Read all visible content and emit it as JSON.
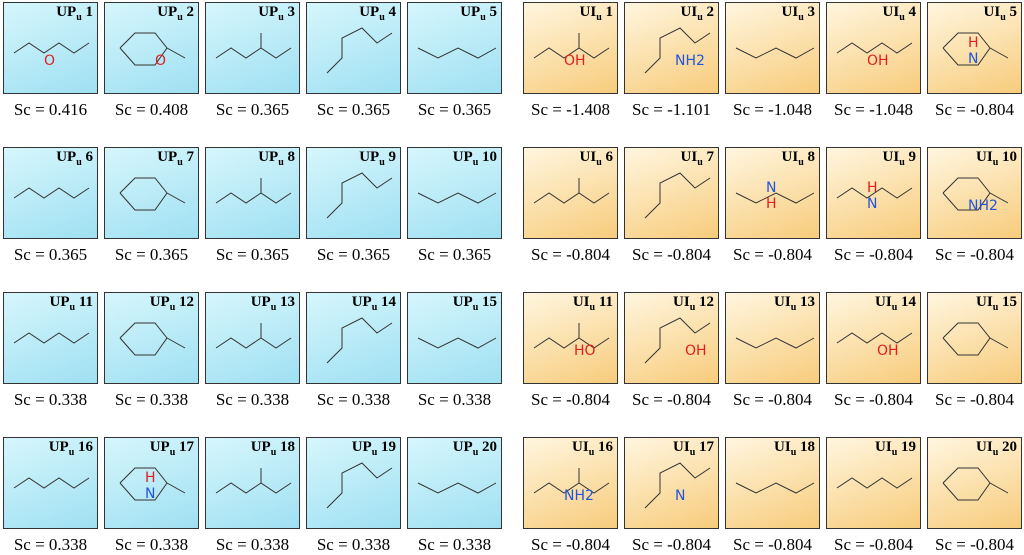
{
  "score_prefix": "Sc = ",
  "left": {
    "prefix": "UP",
    "subscript": "u",
    "items": [
      {
        "n": "1",
        "sc": "0.416",
        "atoms": [
          "O"
        ]
      },
      {
        "n": "2",
        "sc": "0.408",
        "atoms": [
          "O"
        ]
      },
      {
        "n": "3",
        "sc": "0.365"
      },
      {
        "n": "4",
        "sc": "0.365"
      },
      {
        "n": "5",
        "sc": "0.365"
      },
      {
        "n": "6",
        "sc": "0.365"
      },
      {
        "n": "7",
        "sc": "0.365"
      },
      {
        "n": "8",
        "sc": "0.365"
      },
      {
        "n": "9",
        "sc": "0.365"
      },
      {
        "n": "10",
        "sc": "0.365"
      },
      {
        "n": "11",
        "sc": "0.338"
      },
      {
        "n": "12",
        "sc": "0.338"
      },
      {
        "n": "13",
        "sc": "0.338"
      },
      {
        "n": "14",
        "sc": "0.338"
      },
      {
        "n": "15",
        "sc": "0.338"
      },
      {
        "n": "16",
        "sc": "0.338"
      },
      {
        "n": "17",
        "sc": "0.338",
        "atoms": [
          "H",
          "N"
        ]
      },
      {
        "n": "18",
        "sc": "0.338"
      },
      {
        "n": "19",
        "sc": "0.338"
      },
      {
        "n": "20",
        "sc": "0.338"
      }
    ]
  },
  "right": {
    "prefix": "UI",
    "subscript": "u",
    "items": [
      {
        "n": "1",
        "sc": "-1.408",
        "atoms": [
          "OH"
        ]
      },
      {
        "n": "2",
        "sc": "-1.101",
        "atoms": [
          "NH2"
        ]
      },
      {
        "n": "3",
        "sc": "-1.048"
      },
      {
        "n": "4",
        "sc": "-1.048",
        "atoms": [
          "OH"
        ]
      },
      {
        "n": "5",
        "sc": "-0.804",
        "atoms": [
          "H",
          "N"
        ]
      },
      {
        "n": "6",
        "sc": "-0.804"
      },
      {
        "n": "7",
        "sc": "-0.804"
      },
      {
        "n": "8",
        "sc": "-0.804",
        "atoms": [
          "N",
          "H"
        ]
      },
      {
        "n": "9",
        "sc": "-0.804",
        "atoms": [
          "H",
          "N"
        ]
      },
      {
        "n": "10",
        "sc": "-0.804",
        "atoms": [
          "NH2"
        ]
      },
      {
        "n": "11",
        "sc": "-0.804",
        "atoms": [
          "HO"
        ]
      },
      {
        "n": "12",
        "sc": "-0.804",
        "atoms": [
          "OH"
        ]
      },
      {
        "n": "13",
        "sc": "-0.804"
      },
      {
        "n": "14",
        "sc": "-0.804",
        "atoms": [
          "OH"
        ]
      },
      {
        "n": "15",
        "sc": "-0.804"
      },
      {
        "n": "16",
        "sc": "-0.804",
        "atoms": [
          "NH2"
        ]
      },
      {
        "n": "17",
        "sc": "-0.804",
        "atoms": [
          "N"
        ]
      },
      {
        "n": "18",
        "sc": "-0.804"
      },
      {
        "n": "19",
        "sc": "-0.804"
      },
      {
        "n": "20",
        "sc": "-0.804"
      }
    ]
  }
}
